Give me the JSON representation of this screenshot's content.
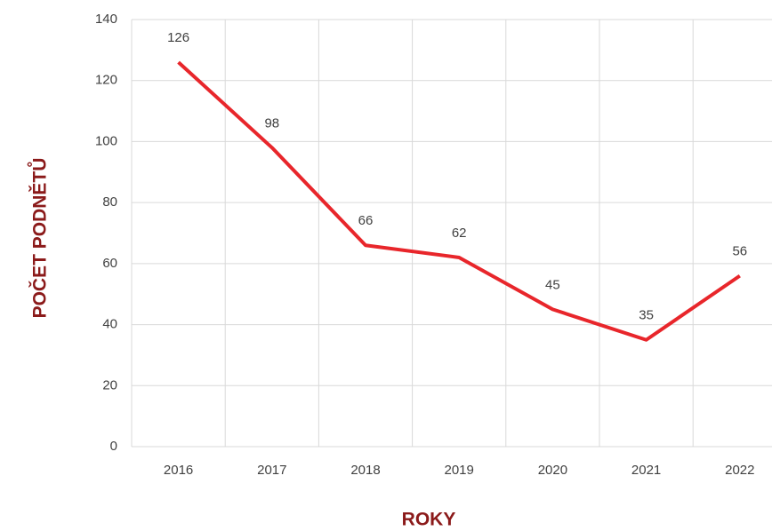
{
  "chart_data": {
    "type": "line",
    "x_label": "ROKY",
    "y_label": "POČET PODNĚTŮ",
    "categories": [
      "2016",
      "2017",
      "2018",
      "2019",
      "2020",
      "2021",
      "2022"
    ],
    "series": [
      {
        "name": "Počet podnětů",
        "color": "#e8262b",
        "values": [
          126,
          98,
          66,
          62,
          45,
          35,
          56
        ]
      }
    ],
    "ylim": [
      0,
      140
    ],
    "yticks": [
      0,
      20,
      40,
      60,
      80,
      100,
      120,
      140
    ],
    "grid": true
  }
}
